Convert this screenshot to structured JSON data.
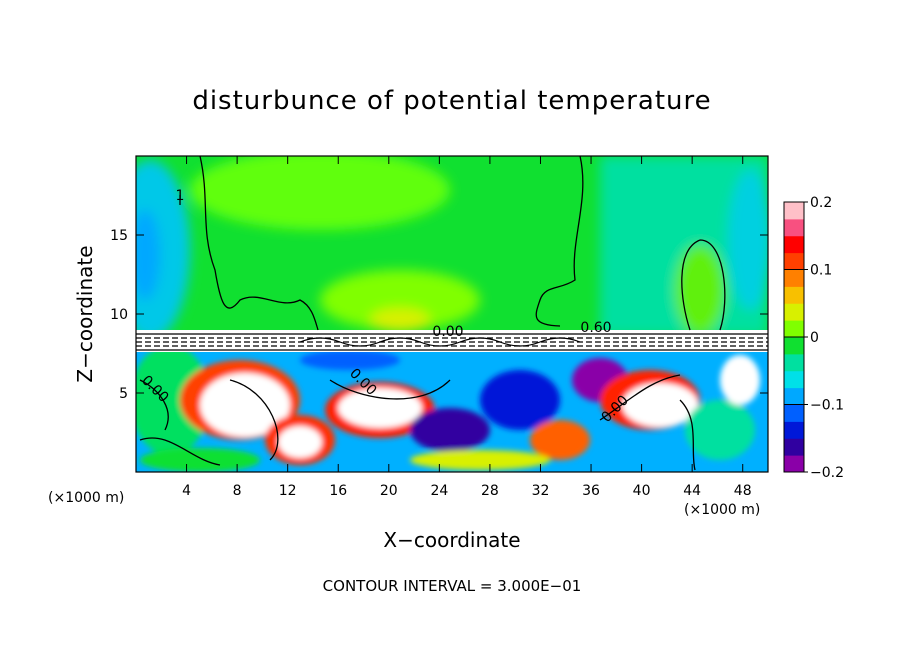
{
  "chart_data": {
    "type": "heatmap",
    "title": "disturbunce of potential temperature",
    "xlabel": "X−coordinate",
    "ylabel": "Z−coordinate",
    "x_unit": "(×1000 m)",
    "x_ticks": [
      4,
      8,
      12,
      16,
      20,
      24,
      28,
      32,
      36,
      40,
      44,
      48
    ],
    "y_ticks": [
      5,
      10,
      15
    ],
    "xlim": [
      0,
      50
    ],
    "ylim": [
      0,
      20
    ],
    "contour_interval_text": "CONTOUR INTERVAL = 3.000E−01",
    "contour_labels": [
      "0.00",
      "0.60",
      "0.00",
      "0.00",
      "0.00",
      "1"
    ],
    "colorbar": {
      "ticks": [
        "0.2",
        "0.1",
        "0",
        "−0.1",
        "−0.2"
      ],
      "range": [
        -0.2,
        0.2
      ],
      "colors": [
        "#8a00a8",
        "#3000a0",
        "#0018d8",
        "#0060ff",
        "#00a8ff",
        "#00e0e8",
        "#00e0a0",
        "#10e030",
        "#80ff00",
        "#d8f000",
        "#f8c000",
        "#ff8000",
        "#ff4000",
        "#ff0000",
        "#f85080",
        "#ffc0c8"
      ]
    }
  }
}
